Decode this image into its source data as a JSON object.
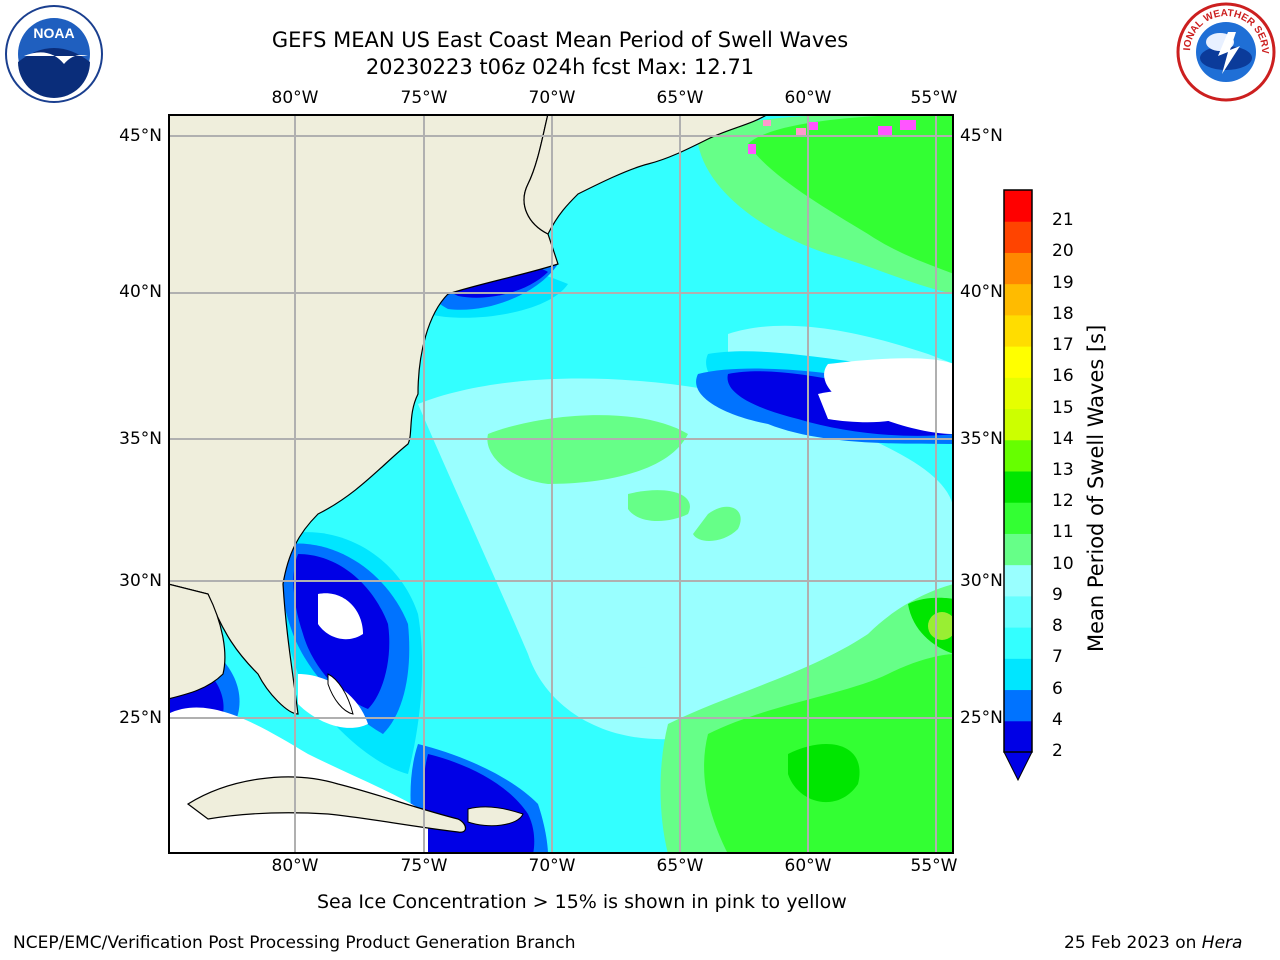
{
  "header": {
    "title_line1": "GEFS MEAN US East Coast Mean Period of Swell Waves",
    "title_line2": "20230223 t06z 024h fcst   Max: 12.71"
  },
  "logos": {
    "noaa_text": "NOAA",
    "nws_text": "NATIONAL WEATHER SERVICE"
  },
  "map": {
    "lon_ticks": [
      "80°W",
      "75°W",
      "70°W",
      "65°W",
      "60°W",
      "55°W"
    ],
    "lat_ticks": [
      "45°N",
      "40°N",
      "35°N",
      "30°N",
      "25°N"
    ]
  },
  "colorbar": {
    "title": "Mean Period of Swell Waves [s]",
    "levels": [
      "2",
      "4",
      "6",
      "7",
      "8",
      "9",
      "10",
      "11",
      "12",
      "13",
      "14",
      "15",
      "16",
      "17",
      "18",
      "19",
      "20",
      "21"
    ],
    "colors": [
      "#0000e6",
      "#0073ff",
      "#00e6ff",
      "#33ffff",
      "#66ffff",
      "#99ffff",
      "#66ff88",
      "#33ff33",
      "#00e600",
      "#66ff00",
      "#ccff00",
      "#e6ff00",
      "#ffff00",
      "#ffdd00",
      "#ffbb00",
      "#ff8800",
      "#ff4400",
      "#ff0000"
    ]
  },
  "notes": {
    "ice_note": "Sea Ice Concentration > 15% is shown in pink to yellow",
    "branch": "NCEP/EMC/Verification Post Processing Product Generation Branch",
    "date_prefix": "25 Feb 2023 on ",
    "machine": "Hera"
  }
}
